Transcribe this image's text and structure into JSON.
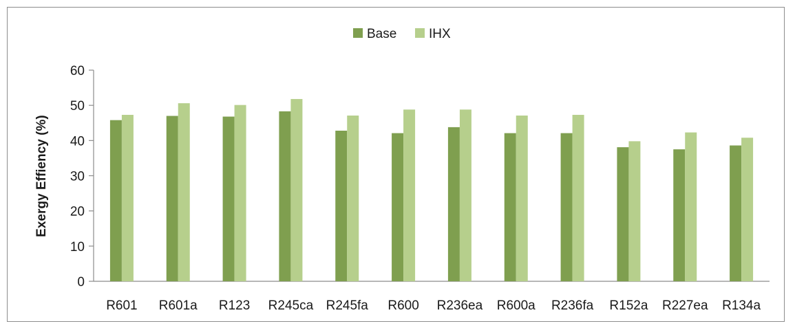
{
  "chart_data": {
    "type": "bar",
    "title": "",
    "xlabel": "",
    "ylabel": "Exergy  Effiency (%)",
    "ylim": [
      0,
      60
    ],
    "yticks": [
      0,
      10,
      20,
      30,
      40,
      50,
      60
    ],
    "grid": false,
    "legend": "top-center",
    "categories": [
      "R601",
      "R601a",
      "R123",
      "R245ca",
      "R245fa",
      "R600",
      "R236ea",
      "R600a",
      "R236fa",
      "R152a",
      "R227ea",
      "R134a"
    ],
    "series": [
      {
        "name": "Base",
        "color": "#7f9f4f",
        "values": [
          45.8,
          47.0,
          46.8,
          48.3,
          42.8,
          42.1,
          43.8,
          42.1,
          42.1,
          38.1,
          37.5,
          38.6
        ]
      },
      {
        "name": "IHX",
        "color": "#b6cf8c",
        "values": [
          47.3,
          50.6,
          50.1,
          51.8,
          47.1,
          48.8,
          48.8,
          47.1,
          47.3,
          39.8,
          42.3,
          40.8
        ]
      }
    ]
  }
}
